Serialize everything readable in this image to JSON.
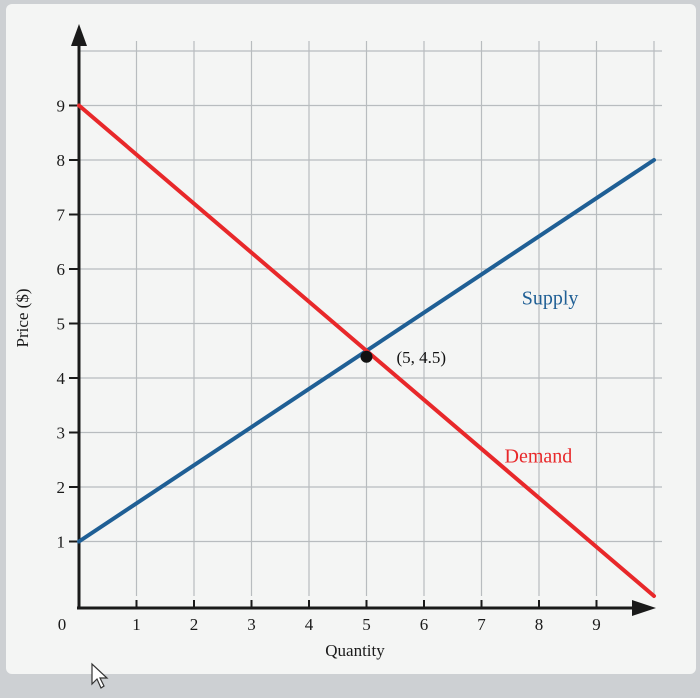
{
  "chart_data": {
    "type": "line",
    "title": "",
    "xlabel": "Quantity",
    "ylabel": "Price ($)",
    "xlim": [
      0,
      10
    ],
    "ylim": [
      0,
      10
    ],
    "x_ticks": [
      "1",
      "2",
      "3",
      "4",
      "5",
      "6",
      "7",
      "8",
      "9"
    ],
    "y_ticks": [
      "1",
      "2",
      "3",
      "4",
      "5",
      "6",
      "7",
      "8",
      "9"
    ],
    "origin_label": "0",
    "grid": true,
    "series": [
      {
        "name": "Supply",
        "color": "#1f5f95",
        "x": [
          0,
          10
        ],
        "y": [
          1,
          8
        ]
      },
      {
        "name": "Demand",
        "color": "#e8282a",
        "x": [
          0,
          10
        ],
        "y": [
          9,
          0
        ]
      }
    ],
    "annotations": [
      {
        "text": "(5, 4.5)",
        "x": 5,
        "y": 4.5
      }
    ]
  },
  "colors": {
    "paper": "#f4f5f4",
    "grid": "#b8bcbf",
    "axis": "#1a1a1a"
  }
}
